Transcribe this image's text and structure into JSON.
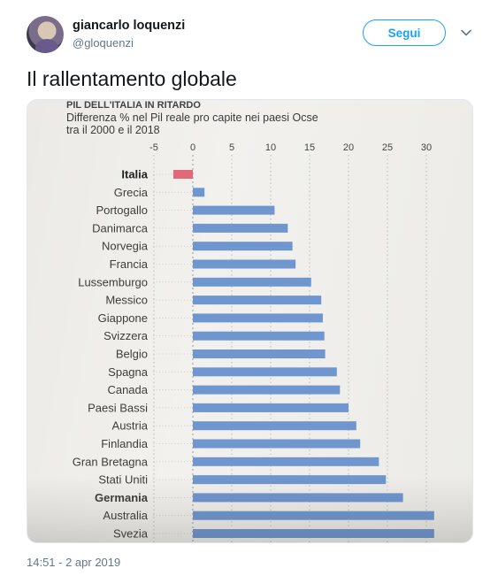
{
  "user": {
    "name": "giancarlo loquenzi",
    "handle": "@gloquenzi",
    "follow_label": "Segui"
  },
  "tweet": {
    "text": "Il rallentamento globale",
    "timestamp": "14:51 - 2 apr 2019"
  },
  "colors": {
    "follow_accent": "#1da1f2",
    "bar_blue": "#6f96cf",
    "bar_red": "#e06a7a"
  },
  "chart_data": {
    "type": "bar",
    "orientation": "horizontal",
    "title": "PIL DELL'ITALIA IN RITARDO",
    "subtitle": "Differenza % nel Pil reale pro capite nei paesi Ocse tra il 2000 e il 2018",
    "xlim": [
      -5,
      30
    ],
    "xticks": [
      "-5",
      "0",
      "5",
      "10",
      "15",
      "20",
      "25",
      "30"
    ],
    "categories": [
      "Italia",
      "Grecia",
      "Portogallo",
      "Danimarca",
      "Norvegia",
      "Francia",
      "Lussemburgo",
      "Messico",
      "Giappone",
      "Svizzera",
      "Belgio",
      "Spagna",
      "Canada",
      "Paesi Bassi",
      "Austria",
      "Finlandia",
      "Gran Bretagna",
      "Stati Uniti",
      "Germania",
      "Australia",
      "Svezia"
    ],
    "values": [
      -2.5,
      1.5,
      10.5,
      12.2,
      12.8,
      13.2,
      15.2,
      16.5,
      16.7,
      16.9,
      17.0,
      18.5,
      18.9,
      20.0,
      21.0,
      21.5,
      23.9,
      24.8,
      27.0,
      31.0,
      31.0
    ],
    "highlight": "Italia",
    "grid": true
  }
}
